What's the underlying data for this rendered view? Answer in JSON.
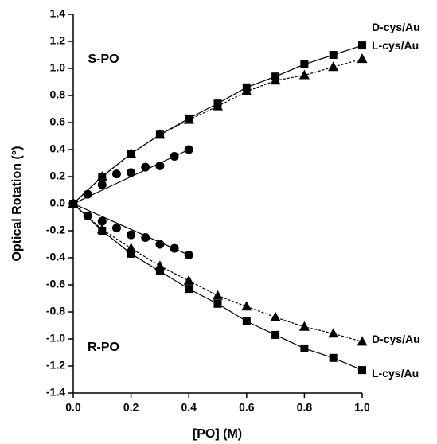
{
  "chart_data": {
    "type": "scatter",
    "xlabel": "[PO] (M)",
    "ylabel": "Optical Rotation (°)",
    "annotations": [
      "S-PO",
      "R-PO"
    ],
    "xlim": [
      0,
      1
    ],
    "ylim": [
      -1.4,
      1.4
    ],
    "xticks": [
      {
        "value": 0,
        "label": "0.0"
      },
      0.2,
      0.4,
      0.6,
      0.8,
      {
        "value": 1,
        "label": "1.0"
      }
    ],
    "yticks": [
      -1.4,
      -1.2,
      {
        "value": -1,
        "label": "-1.0"
      },
      -0.8,
      -0.6,
      -0.4,
      -0.2,
      {
        "value": 0,
        "label": "0.0"
      },
      0.2,
      0.4,
      0.6,
      0.8,
      {
        "value": 1,
        "label": "1.0"
      },
      1.2,
      1.4
    ],
    "series": [
      {
        "name": "D-cys/Au",
        "color": "#000000",
        "marker": "square",
        "line": "solid",
        "x": [
          0,
          0.1,
          0.2,
          0.3,
          0.4,
          0.5,
          0.6,
          0.7,
          0.8,
          0.9,
          1
        ],
        "values": [
          0,
          0.2,
          0.37,
          0.51,
          0.63,
          0.74,
          0.86,
          0.94,
          1.03,
          1.1,
          1.17
        ]
      },
      {
        "name": "L-cys/Au",
        "color": "#000000",
        "marker": "triangle",
        "line": "dashed",
        "x": [
          0,
          0.1,
          0.2,
          0.3,
          0.4,
          0.5,
          0.6,
          0.7,
          0.8,
          0.9,
          1
        ],
        "values": [
          0,
          0.2,
          0.37,
          0.51,
          0.62,
          0.72,
          0.83,
          0.91,
          0.95,
          1.01,
          1.07
        ]
      },
      {
        "color": "#000000",
        "marker": "circle",
        "line": "linear",
        "x": [
          0,
          0.05,
          0.1,
          0.15,
          0.2,
          0.25,
          0.3,
          0.35,
          0.4
        ],
        "values": [
          0,
          0.07,
          0.14,
          0.22,
          0.23,
          0.27,
          0.28,
          0.35,
          0.4
        ]
      },
      {
        "name": "L-cys/Au",
        "color": "#000000",
        "marker": "square",
        "line": "solid",
        "x": [
          0,
          0.1,
          0.2,
          0.3,
          0.4,
          0.5,
          0.6,
          0.7,
          0.8,
          0.9,
          1
        ],
        "values": [
          0,
          -0.2,
          -0.37,
          -0.5,
          -0.63,
          -0.74,
          -0.87,
          -0.97,
          -1.07,
          -1.14,
          -1.23
        ]
      },
      {
        "name": "D-cys/Au",
        "color": "#000000",
        "marker": "triangle",
        "line": "dashed",
        "x": [
          0,
          0.1,
          0.2,
          0.3,
          0.4,
          0.5,
          0.6,
          0.7,
          0.8,
          0.9,
          1
        ],
        "values": [
          0,
          -0.19,
          -0.33,
          -0.46,
          -0.57,
          -0.68,
          -0.76,
          -0.84,
          -0.91,
          -0.96,
          -1.02
        ]
      },
      {
        "color": "#000000",
        "marker": "circle",
        "line": "linear",
        "x": [
          0,
          0.05,
          0.1,
          0.15,
          0.2,
          0.25,
          0.3,
          0.35,
          0.4
        ],
        "values": [
          0,
          -0.09,
          -0.13,
          -0.18,
          -0.23,
          -0.25,
          -0.3,
          -0.33,
          -0.38
        ]
      }
    ]
  }
}
